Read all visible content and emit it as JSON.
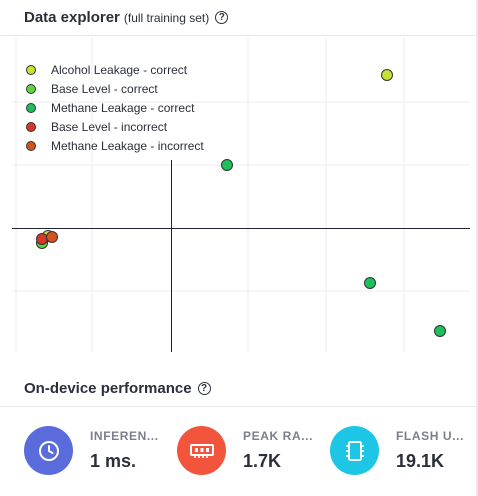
{
  "header": {
    "title": "Data explorer",
    "subtitle": "(full training set)",
    "help_symbol": "?"
  },
  "legend": [
    {
      "label": "Alcohol Leakage - correct",
      "color": "#c7e034"
    },
    {
      "label": "Base Level - correct",
      "color": "#5fd33a"
    },
    {
      "label": "Methane Leakage - correct",
      "color": "#1fbf5c"
    },
    {
      "label": "Base Level - incorrect",
      "color": "#d8362b"
    },
    {
      "label": "Methane Leakage - incorrect",
      "color": "#d4521f"
    }
  ],
  "points": [
    {
      "class": "Alcohol Leakage - correct",
      "color": "#c7e034"
    },
    {
      "class": "Methane Leakage - correct",
      "color": "#1fbf5c"
    },
    {
      "class": "Methane Leakage - correct",
      "color": "#1fbf5c"
    },
    {
      "class": "Methane Leakage - correct",
      "color": "#1fbf5c"
    },
    {
      "class": "Base Level - correct",
      "color": "#5fd33a"
    },
    {
      "class": "Alcohol Leakage - correct",
      "color": "#c7e034"
    },
    {
      "class": "Base Level - incorrect",
      "color": "#d8362b"
    },
    {
      "class": "Methane Leakage - incorrect",
      "color": "#d4521f"
    }
  ],
  "performance": {
    "title": "On-device performance",
    "help_symbol": "?",
    "metrics": [
      {
        "label": "INFEREN...",
        "value": "1 ms.",
        "icon": "clock-icon",
        "color": "#5a6bdc"
      },
      {
        "label": "PEAK RA...",
        "value": "1.7K",
        "icon": "ram-chip-icon",
        "color": "#f2553c"
      },
      {
        "label": "FLASH U...",
        "value": "19.1K",
        "icon": "flash-chip-icon",
        "color": "#1ec6e6"
      }
    ]
  }
}
